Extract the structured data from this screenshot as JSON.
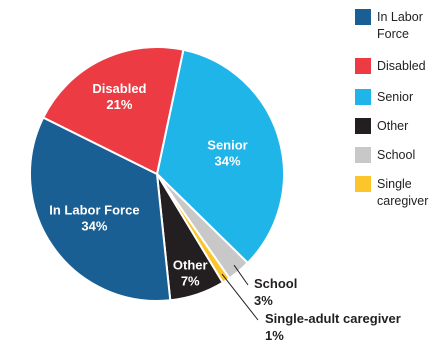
{
  "chart_data": {
    "type": "pie",
    "title": "",
    "categories": [
      "In Labor Force",
      "Disabled",
      "Senior",
      "Other",
      "School",
      "Single-adult caregiver"
    ],
    "values": [
      34,
      21,
      34,
      7,
      3,
      1
    ],
    "value_labels": [
      "34%",
      "21%",
      "34%",
      "7%",
      "3%",
      "1%"
    ],
    "colors": [
      "#1a5f94",
      "#ec3b43",
      "#20b5e8",
      "#231f20",
      "#c8c8c8",
      "#fcc52c"
    ],
    "slice_labels": {
      "in_labor_force": "In Labor Force",
      "disabled": "Disabled",
      "senior": "Senior",
      "other": "Other",
      "school": "School",
      "single_adult_caregiver": "Single-adult caregiver"
    },
    "legend": {
      "placement": "right",
      "items": [
        {
          "lines": [
            "In Labor",
            "Force"
          ],
          "color": "#1a5f94"
        },
        {
          "lines": [
            "Disabled"
          ],
          "color": "#ec3b43"
        },
        {
          "lines": [
            "Senior"
          ],
          "color": "#20b5e8"
        },
        {
          "lines": [
            "Other"
          ],
          "color": "#231f20"
        },
        {
          "lines": [
            "School"
          ],
          "color": "#c8c8c8"
        },
        {
          "lines": [
            "Single",
            "caregiver"
          ],
          "color": "#fcc52c"
        }
      ]
    }
  }
}
